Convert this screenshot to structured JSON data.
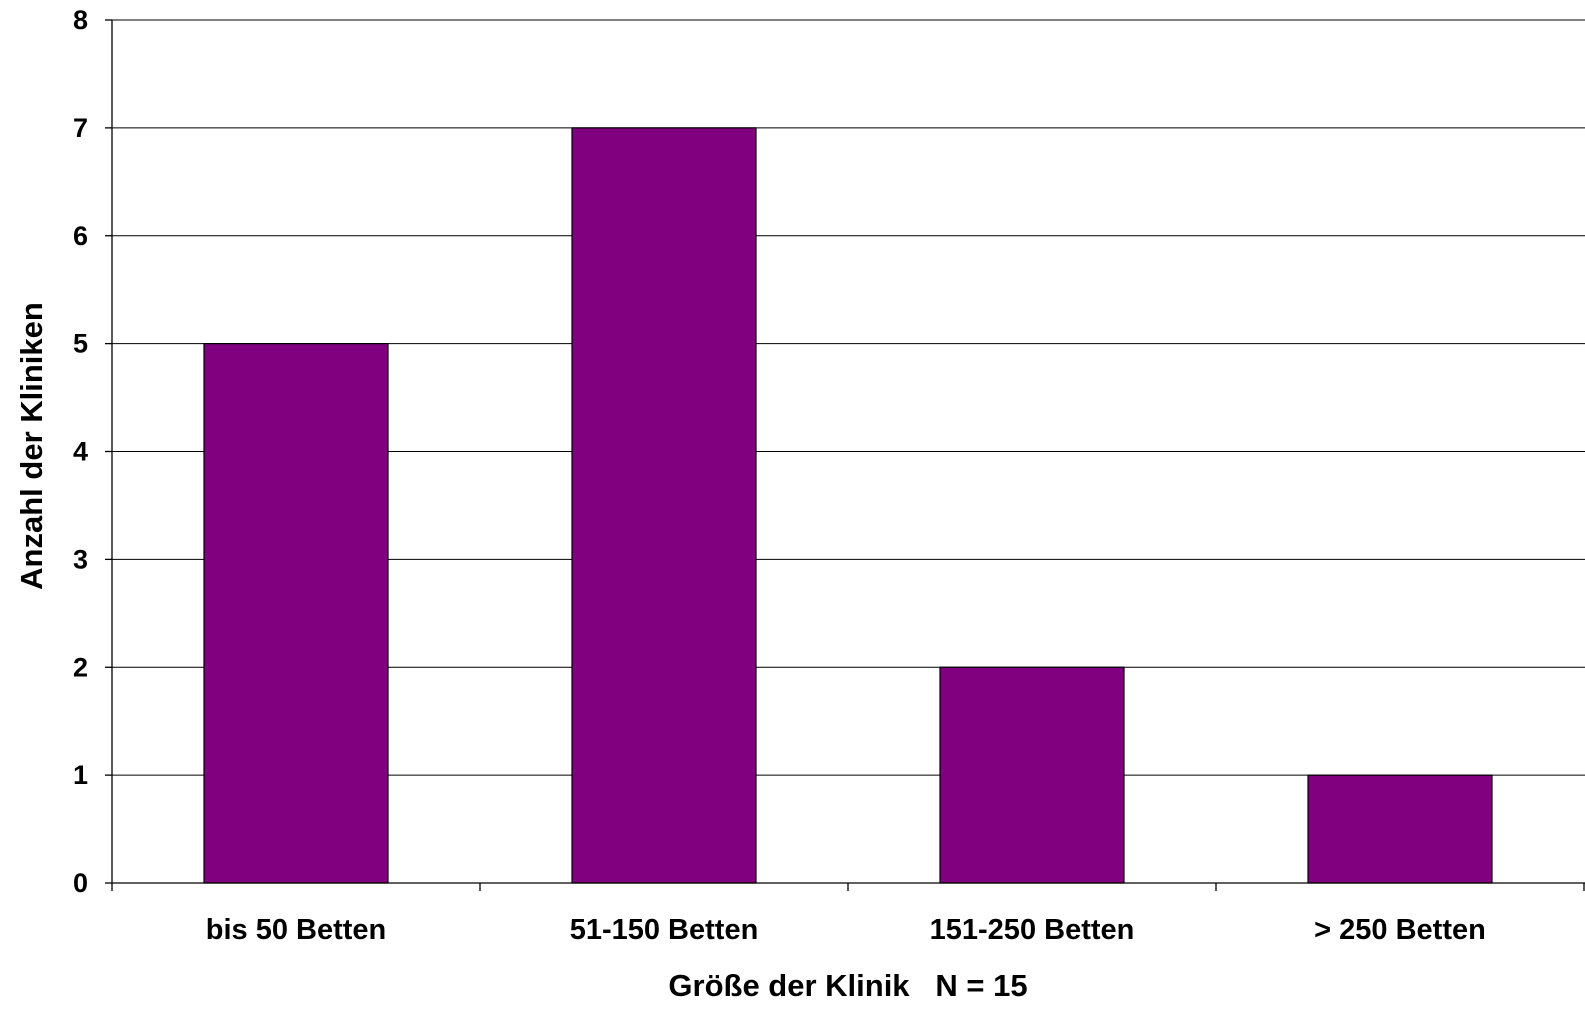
{
  "chart_data": {
    "type": "bar",
    "categories": [
      "bis 50 Betten",
      "51-150 Betten",
      "151-250 Betten",
      "> 250 Betten"
    ],
    "values": [
      5,
      7,
      2,
      1
    ],
    "xlabel": "Größe der Klinik   N = 15",
    "ylabel": "Anzahl der Kliniken",
    "ylim": [
      0,
      8
    ],
    "yticks": [
      0,
      1,
      2,
      3,
      4,
      5,
      6,
      7,
      8
    ],
    "grid": true,
    "legend": "none",
    "colors": {
      "bar": "#800080",
      "bar_outline": "#000000",
      "grid": "#000000"
    }
  }
}
